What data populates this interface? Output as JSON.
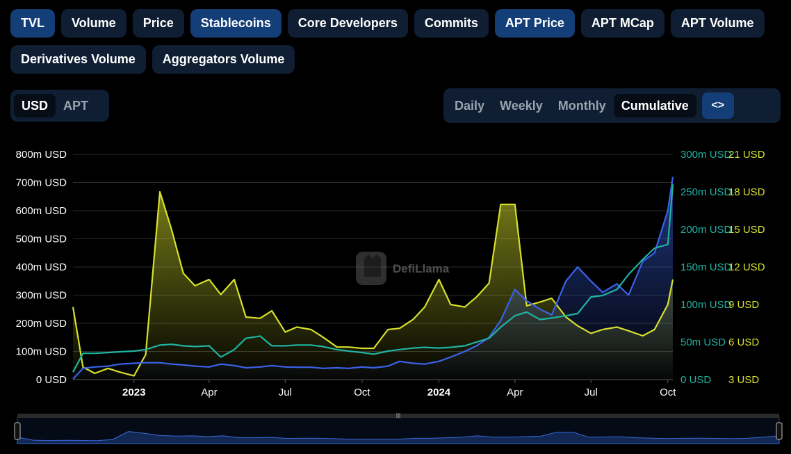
{
  "tabs": [
    {
      "label": "TVL",
      "active": true
    },
    {
      "label": "Volume",
      "active": false
    },
    {
      "label": "Price",
      "active": false
    },
    {
      "label": "Stablecoins",
      "active": true
    },
    {
      "label": "Core Developers",
      "active": false
    },
    {
      "label": "Commits",
      "active": false
    },
    {
      "label": "APT Price",
      "active": true
    },
    {
      "label": "APT MCap",
      "active": false
    },
    {
      "label": "APT Volume",
      "active": false
    },
    {
      "label": "Derivatives Volume",
      "active": false
    },
    {
      "label": "Aggregators Volume",
      "active": false
    }
  ],
  "currency": {
    "options": [
      "USD",
      "APT"
    ],
    "selected": "USD"
  },
  "period": {
    "options": [
      "Daily",
      "Weekly",
      "Monthly",
      "Cumulative"
    ],
    "selected": "Cumulative",
    "embed_icon": "code-icon"
  },
  "watermark": "DefiLlama",
  "colors": {
    "tvl": "#3b62ea",
    "stablecoins": "#1fb3a3",
    "apt_price": "#d6e02c",
    "grid": "#2b2b2b"
  },
  "chart_data": {
    "type": "line",
    "x": [
      "2022-10-20",
      "2022-11-01",
      "2022-11-15",
      "2022-12-01",
      "2022-12-15",
      "2023-01-01",
      "2023-01-15",
      "2023-02-01",
      "2023-02-15",
      "2023-03-01",
      "2023-03-15",
      "2023-04-01",
      "2023-04-15",
      "2023-05-01",
      "2023-05-15",
      "2023-06-01",
      "2023-06-15",
      "2023-07-01",
      "2023-07-15",
      "2023-08-01",
      "2023-08-15",
      "2023-09-01",
      "2023-09-15",
      "2023-10-01",
      "2023-10-15",
      "2023-11-01",
      "2023-11-15",
      "2023-12-01",
      "2023-12-15",
      "2024-01-01",
      "2024-01-15",
      "2024-02-01",
      "2024-02-15",
      "2024-03-01",
      "2024-03-15",
      "2024-04-01",
      "2024-04-15",
      "2024-05-01",
      "2024-05-15",
      "2024-06-01",
      "2024-06-15",
      "2024-07-01",
      "2024-07-15",
      "2024-08-01",
      "2024-08-15",
      "2024-09-01",
      "2024-09-15",
      "2024-10-01",
      "2024-10-07"
    ],
    "x_ticks": [
      "2023",
      "Apr",
      "Jul",
      "Oct",
      "2024",
      "Apr",
      "Jul",
      "Oct"
    ],
    "x_tick_dates": [
      "2023-01-01",
      "2023-04-01",
      "2023-07-01",
      "2023-10-01",
      "2024-01-01",
      "2024-04-01",
      "2024-07-01",
      "2024-10-01"
    ],
    "series": [
      {
        "name": "TVL",
        "axis": "left",
        "color": "#3b62ea",
        "filled": true,
        "values": [
          2,
          40,
          45,
          48,
          55,
          58,
          60,
          60,
          55,
          52,
          48,
          45,
          55,
          50,
          42,
          45,
          50,
          45,
          44,
          44,
          40,
          42,
          40,
          45,
          42,
          48,
          65,
          58,
          55,
          65,
          80,
          100,
          120,
          150,
          210,
          320,
          280,
          250,
          230,
          350,
          400,
          350,
          310,
          340,
          300,
          420,
          450,
          600,
          720
        ]
      },
      {
        "name": "Stablecoins",
        "axis": "right1",
        "color": "#1fb3a3",
        "filled": false,
        "values": [
          10,
          35,
          35,
          36,
          37,
          38,
          40,
          46,
          47,
          45,
          44,
          45,
          30,
          40,
          55,
          58,
          45,
          45,
          46,
          46,
          44,
          40,
          38,
          36,
          34,
          38,
          40,
          42,
          43,
          42,
          43,
          45,
          50,
          55,
          70,
          85,
          90,
          80,
          82,
          85,
          88,
          110,
          112,
          120,
          140,
          160,
          175,
          180,
          260
        ]
      },
      {
        "name": "APT Price",
        "axis": "right2",
        "color": "#d6e02c",
        "filled": true,
        "values": [
          8.8,
          4.0,
          3.5,
          3.9,
          3.6,
          3.3,
          5.0,
          18.0,
          15.0,
          11.5,
          10.5,
          11.0,
          9.8,
          11.0,
          8.0,
          7.9,
          8.5,
          6.8,
          7.2,
          7.0,
          6.4,
          5.6,
          5.6,
          5.5,
          5.5,
          7.0,
          7.1,
          7.8,
          8.8,
          11.0,
          9.0,
          8.8,
          9.6,
          10.7,
          17.0,
          17.0,
          8.9,
          9.2,
          9.5,
          8.0,
          7.3,
          6.7,
          7.0,
          7.2,
          6.9,
          6.5,
          7.0,
          9.0,
          11.0
        ]
      }
    ],
    "y_axes": {
      "left": {
        "ticks": [
          "0 USD",
          "100m USD",
          "200m USD",
          "300m USD",
          "400m USD",
          "500m USD",
          "600m USD",
          "700m USD",
          "800m USD"
        ],
        "range": [
          0,
          800
        ]
      },
      "right1": {
        "ticks": [
          "0 USD",
          "50m USD",
          "100m USD",
          "150m USD",
          "200m USD",
          "250m USD",
          "300m USD"
        ],
        "range": [
          0,
          300
        ]
      },
      "right2": {
        "ticks": [
          "3 USD",
          "6 USD",
          "9 USD",
          "12 USD",
          "15 USD",
          "18 USD",
          "21 USD"
        ],
        "range": [
          3,
          21
        ]
      }
    },
    "grid": true
  }
}
